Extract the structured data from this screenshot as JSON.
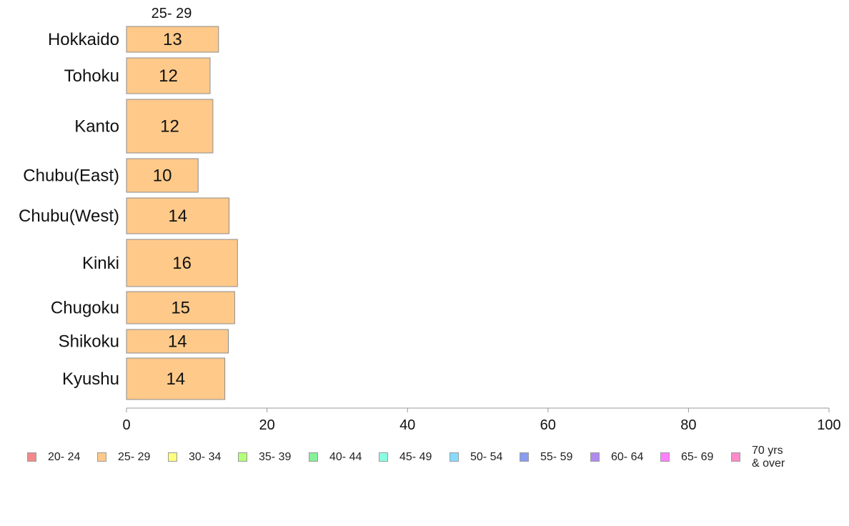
{
  "chart_data": {
    "type": "bar",
    "orientation": "horizontal",
    "series_label": "25- 29",
    "categories": [
      "Hokkaido",
      "Tohoku",
      "Kanto",
      "Chubu(East)",
      "Chubu(West)",
      "Kinki",
      "Chugoku",
      "Shikoku",
      "Kyushu"
    ],
    "values": [
      13,
      12,
      12,
      10,
      14,
      16,
      15,
      14,
      14
    ],
    "bar_length_estimates": [
      13.1,
      11.9,
      12.3,
      10.2,
      14.6,
      15.8,
      15.4,
      14.5,
      14.0
    ],
    "xlim": [
      0,
      100
    ],
    "x_ticks": [
      0,
      20,
      40,
      60,
      80,
      100
    ],
    "bar_color": "#ffc98a",
    "legend_position": "bottom",
    "legend": [
      {
        "label": "20- 24",
        "color": "#f08a8a"
      },
      {
        "label": "25- 29",
        "color": "#ffc98a"
      },
      {
        "label": "30- 34",
        "color": "#ffff80"
      },
      {
        "label": "35- 39",
        "color": "#b6ff7a"
      },
      {
        "label": "40- 44",
        "color": "#86f09a"
      },
      {
        "label": "45- 49",
        "color": "#8affe0"
      },
      {
        "label": "50- 54",
        "color": "#86dcff"
      },
      {
        "label": "55- 59",
        "color": "#8a9cf0"
      },
      {
        "label": "60- 64",
        "color": "#b08af0"
      },
      {
        "label": "65- 69",
        "color": "#ff80ff"
      },
      {
        "label": "70 yrs\n& over",
        "color": "#ff8ac8"
      }
    ]
  }
}
